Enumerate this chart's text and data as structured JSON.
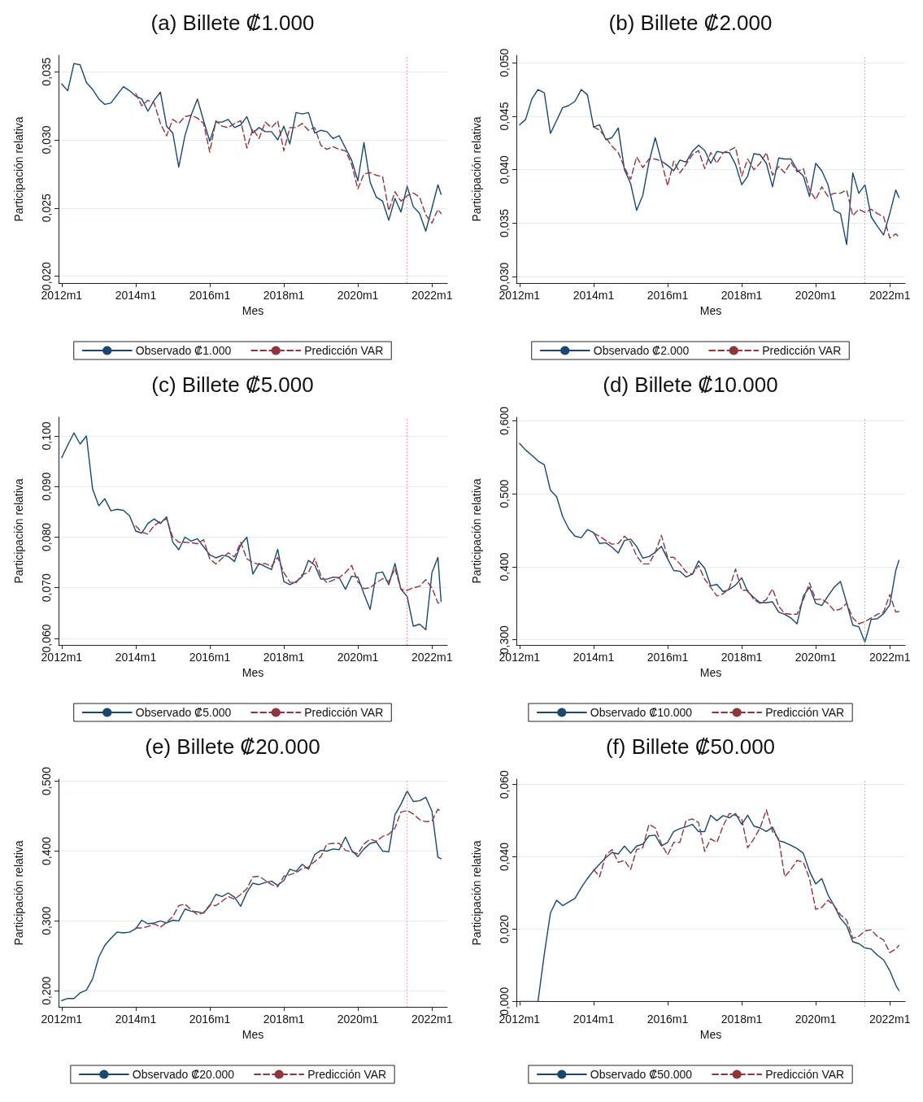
{
  "chart_data": [
    {
      "type": "line",
      "title": "(a) Billete ₡1.000",
      "xlabel": "Mes",
      "ylabel": "Participación relativa",
      "legend": "bottom",
      "grid": "y",
      "xlim": [
        "2011-12",
        "2022-06"
      ],
      "xticks": [
        {
          "value": "2012-01",
          "label": "2012m1"
        },
        {
          "value": "2014-01",
          "label": "2014m1"
        },
        {
          "value": "2016-01",
          "label": "2016m1"
        },
        {
          "value": "2018-01",
          "label": "2018m1"
        },
        {
          "value": "2020-01",
          "label": "2020m1"
        },
        {
          "value": "2022-01",
          "label": "2022m1"
        }
      ],
      "ylim": [
        0.0195,
        0.0362
      ],
      "yticks": [
        {
          "value": 0.02,
          "label": "0,020"
        },
        {
          "value": 0.025,
          "label": "0,025"
        },
        {
          "value": 0.03,
          "label": "0,030"
        },
        {
          "value": 0.035,
          "label": "0,035"
        }
      ],
      "ref_lines": [
        {
          "axis": "x",
          "value": "2021-05",
          "color": "#e8899a",
          "line_style": "dotted"
        }
      ],
      "x": [
        "2012-01",
        "2012-03",
        "2012-05",
        "2012-07",
        "2012-09",
        "2012-11",
        "2013-01",
        "2013-03",
        "2013-05",
        "2013-07",
        "2013-09",
        "2013-11",
        "2014-01",
        "2014-03",
        "2014-05",
        "2014-07",
        "2014-09",
        "2014-11",
        "2015-01",
        "2015-03",
        "2015-05",
        "2015-07",
        "2015-09",
        "2015-11",
        "2016-01",
        "2016-03",
        "2016-05",
        "2016-07",
        "2016-09",
        "2016-11",
        "2017-01",
        "2017-03",
        "2017-05",
        "2017-07",
        "2017-09",
        "2017-11",
        "2018-01",
        "2018-03",
        "2018-05",
        "2018-07",
        "2018-09",
        "2018-11",
        "2019-01",
        "2019-03",
        "2019-05",
        "2019-07",
        "2019-09",
        "2019-11",
        "2020-01",
        "2020-03",
        "2020-05",
        "2020-07",
        "2020-09",
        "2020-11",
        "2021-01",
        "2021-03",
        "2021-05",
        "2021-07",
        "2021-09",
        "2021-11",
        "2022-01",
        "2022-03",
        "2022-04"
      ],
      "series": [
        {
          "name": "Observado ₡1.000",
          "color": "#1a476f",
          "line_style": "solid",
          "values": [
            0.0341,
            0.0336,
            0.0356,
            0.0355,
            0.0342,
            0.0337,
            0.033,
            0.0326,
            0.0327,
            0.0333,
            0.0339,
            0.0336,
            0.0332,
            0.033,
            0.0321,
            0.0329,
            0.0335,
            0.031,
            0.0305,
            0.028,
            0.0303,
            0.0318,
            0.033,
            0.0314,
            0.0299,
            0.0313,
            0.0313,
            0.0315,
            0.0309,
            0.0311,
            0.0317,
            0.0305,
            0.0309,
            0.0306,
            0.0306,
            0.03,
            0.031,
            0.0297,
            0.032,
            0.0319,
            0.032,
            0.0305,
            0.0307,
            0.0306,
            0.0301,
            0.0303,
            0.0294,
            0.0285,
            0.027,
            0.0298,
            0.0269,
            0.0258,
            0.0255,
            0.0241,
            0.0257,
            0.0247,
            0.0266,
            0.0251,
            0.0246,
            0.0233,
            0.025,
            0.0267,
            0.026
          ]
        },
        {
          "name": "Predicción VAR",
          "color": "#90353b",
          "line_style": "dashed",
          "values": [
            null,
            null,
            null,
            null,
            null,
            null,
            null,
            null,
            null,
            null,
            null,
            null,
            0.0334,
            0.0325,
            0.0329,
            0.0327,
            0.0312,
            0.0303,
            0.0315,
            0.0312,
            0.0317,
            0.0318,
            0.0316,
            0.0312,
            0.0291,
            0.0314,
            0.031,
            0.0309,
            0.0312,
            0.0314,
            0.0294,
            0.0308,
            0.0301,
            0.0313,
            0.0309,
            0.0314,
            0.0292,
            0.0309,
            0.0309,
            0.0312,
            0.0307,
            0.0309,
            0.0296,
            0.0293,
            0.0295,
            0.0293,
            0.0292,
            0.0282,
            0.0264,
            0.0275,
            0.0276,
            0.0274,
            0.0273,
            0.0248,
            0.0262,
            0.0255,
            0.0259,
            0.0261,
            0.0258,
            0.0245,
            0.0239,
            0.0249,
            0.0246
          ]
        }
      ]
    },
    {
      "type": "line",
      "title": "(b) Billete ₡2.000",
      "xlabel": "Mes",
      "ylabel": "Participación relativa",
      "legend": "bottom",
      "grid": "y",
      "xlim": [
        "2011-12",
        "2022-06"
      ],
      "xticks": [
        {
          "value": "2012-01",
          "label": "2012m1"
        },
        {
          "value": "2014-01",
          "label": "2014m1"
        },
        {
          "value": "2016-01",
          "label": "2016m1"
        },
        {
          "value": "2018-01",
          "label": "2018m1"
        },
        {
          "value": "2020-01",
          "label": "2020m1"
        },
        {
          "value": "2022-01",
          "label": "2022m1"
        }
      ],
      "ylim": [
        0.0294,
        0.0507
      ],
      "yticks": [
        {
          "value": 0.03,
          "label": "0,030"
        },
        {
          "value": 0.035,
          "label": "0,035"
        },
        {
          "value": 0.04,
          "label": "0,040"
        },
        {
          "value": 0.045,
          "label": "0,045"
        },
        {
          "value": 0.05,
          "label": "0,050"
        }
      ],
      "ref_lines": [
        {
          "axis": "x",
          "value": "2021-05",
          "color": "#e8899a",
          "line_style": "dotted"
        }
      ],
      "x": [
        "2012-01",
        "2012-03",
        "2012-05",
        "2012-07",
        "2012-09",
        "2012-11",
        "2013-01",
        "2013-03",
        "2013-05",
        "2013-07",
        "2013-09",
        "2013-11",
        "2014-01",
        "2014-03",
        "2014-05",
        "2014-07",
        "2014-09",
        "2014-11",
        "2015-01",
        "2015-03",
        "2015-05",
        "2015-07",
        "2015-09",
        "2015-11",
        "2016-01",
        "2016-03",
        "2016-05",
        "2016-07",
        "2016-09",
        "2016-11",
        "2017-01",
        "2017-03",
        "2017-05",
        "2017-07",
        "2017-09",
        "2017-11",
        "2018-01",
        "2018-03",
        "2018-05",
        "2018-07",
        "2018-09",
        "2018-11",
        "2019-01",
        "2019-03",
        "2019-05",
        "2019-07",
        "2019-09",
        "2019-11",
        "2020-01",
        "2020-03",
        "2020-05",
        "2020-07",
        "2020-09",
        "2020-11",
        "2021-01",
        "2021-03",
        "2021-05",
        "2021-07",
        "2021-09",
        "2021-11",
        "2022-01",
        "2022-03",
        "2022-04"
      ],
      "series": [
        {
          "name": "Observado ₡2.000",
          "color": "#1a476f",
          "line_style": "solid",
          "values": [
            0.0442,
            0.0447,
            0.0466,
            0.0475,
            0.0472,
            0.0434,
            0.0446,
            0.0458,
            0.046,
            0.0464,
            0.0475,
            0.047,
            0.044,
            0.0442,
            0.0428,
            0.043,
            0.0439,
            0.04,
            0.0387,
            0.0362,
            0.0376,
            0.0407,
            0.043,
            0.0408,
            0.0404,
            0.0399,
            0.0409,
            0.0407,
            0.0417,
            0.0423,
            0.0418,
            0.0406,
            0.0417,
            0.0416,
            0.0416,
            0.0405,
            0.0386,
            0.0394,
            0.0415,
            0.0414,
            0.0406,
            0.0384,
            0.0411,
            0.041,
            0.041,
            0.04,
            0.0394,
            0.0375,
            0.0406,
            0.0399,
            0.0386,
            0.0362,
            0.0359,
            0.033,
            0.0397,
            0.0378,
            0.0386,
            0.0356,
            0.0347,
            0.0339,
            0.0359,
            0.0381,
            0.0374
          ]
        },
        {
          "name": "Predicción VAR",
          "color": "#90353b",
          "line_style": "dashed",
          "values": [
            null,
            null,
            null,
            null,
            null,
            null,
            null,
            null,
            null,
            null,
            null,
            null,
            0.044,
            0.0437,
            0.043,
            0.0422,
            0.0416,
            0.0402,
            0.0391,
            0.0412,
            0.0402,
            0.041,
            0.041,
            0.0408,
            0.0385,
            0.0408,
            0.0397,
            0.0405,
            0.0414,
            0.0418,
            0.0401,
            0.0416,
            0.0406,
            0.0416,
            0.0418,
            0.0421,
            0.0394,
            0.041,
            0.04,
            0.0406,
            0.0416,
            0.0395,
            0.0403,
            0.0397,
            0.0407,
            0.0398,
            0.0401,
            0.0381,
            0.0372,
            0.0384,
            0.0375,
            0.0378,
            0.0378,
            0.0381,
            0.0357,
            0.0363,
            0.036,
            0.0363,
            0.0359,
            0.0356,
            0.0336,
            0.034,
            0.0337
          ]
        }
      ]
    },
    {
      "type": "line",
      "title": "(c) Billete ₡5.000",
      "xlabel": "Mes",
      "ylabel": "Participación relativa",
      "legend": "bottom",
      "grid": "y",
      "xlim": [
        "2011-12",
        "2022-06"
      ],
      "xticks": [
        {
          "value": "2012-01",
          "label": "2012m1"
        },
        {
          "value": "2014-01",
          "label": "2014m1"
        },
        {
          "value": "2016-01",
          "label": "2016m1"
        },
        {
          "value": "2018-01",
          "label": "2018m1"
        },
        {
          "value": "2020-01",
          "label": "2020m1"
        },
        {
          "value": "2022-01",
          "label": "2022m1"
        }
      ],
      "ylim": [
        0.0587,
        0.1037
      ],
      "yticks": [
        {
          "value": 0.06,
          "label": "0,060"
        },
        {
          "value": 0.07,
          "label": "0,070"
        },
        {
          "value": 0.08,
          "label": "0,080"
        },
        {
          "value": 0.09,
          "label": "0,090"
        },
        {
          "value": 0.1,
          "label": "0,100"
        }
      ],
      "ref_lines": [
        {
          "axis": "x",
          "value": "2021-05",
          "color": "#e8899a",
          "line_style": "dotted"
        }
      ],
      "x": [
        "2012-01",
        "2012-03",
        "2012-05",
        "2012-07",
        "2012-09",
        "2012-11",
        "2013-01",
        "2013-03",
        "2013-05",
        "2013-07",
        "2013-09",
        "2013-11",
        "2014-01",
        "2014-03",
        "2014-05",
        "2014-07",
        "2014-09",
        "2014-11",
        "2015-01",
        "2015-03",
        "2015-05",
        "2015-07",
        "2015-09",
        "2015-11",
        "2016-01",
        "2016-03",
        "2016-05",
        "2016-07",
        "2016-09",
        "2016-11",
        "2017-01",
        "2017-03",
        "2017-05",
        "2017-07",
        "2017-09",
        "2017-11",
        "2018-01",
        "2018-03",
        "2018-05",
        "2018-07",
        "2018-09",
        "2018-11",
        "2019-01",
        "2019-03",
        "2019-05",
        "2019-07",
        "2019-09",
        "2019-11",
        "2020-01",
        "2020-03",
        "2020-05",
        "2020-07",
        "2020-09",
        "2020-11",
        "2021-01",
        "2021-03",
        "2021-05",
        "2021-07",
        "2021-09",
        "2021-11",
        "2022-01",
        "2022-03",
        "2022-04"
      ],
      "series": [
        {
          "name": "Observado ₡5.000",
          "color": "#1a476f",
          "line_style": "solid",
          "values": [
            0.0957,
            0.0982,
            0.1006,
            0.0984,
            0.1,
            0.0895,
            0.0862,
            0.0876,
            0.0852,
            0.0855,
            0.0853,
            0.0842,
            0.0812,
            0.0808,
            0.0827,
            0.0836,
            0.0827,
            0.084,
            0.079,
            0.0775,
            0.08,
            0.0792,
            0.0797,
            0.0781,
            0.0765,
            0.0759,
            0.0764,
            0.0762,
            0.0752,
            0.0785,
            0.08,
            0.0727,
            0.0748,
            0.0742,
            0.0736,
            0.0776,
            0.0712,
            0.0706,
            0.0712,
            0.0722,
            0.0754,
            0.0745,
            0.0717,
            0.0717,
            0.0721,
            0.072,
            0.0697,
            0.0723,
            0.0721,
            0.0688,
            0.0657,
            0.0729,
            0.0731,
            0.0706,
            0.0748,
            0.0697,
            0.0683,
            0.0624,
            0.0628,
            0.0617,
            0.073,
            0.076,
            0.0673
          ]
        },
        {
          "name": "Predicción VAR",
          "color": "#90353b",
          "line_style": "dashed",
          "values": [
            null,
            null,
            null,
            null,
            null,
            null,
            null,
            null,
            null,
            null,
            null,
            null,
            0.0822,
            0.081,
            0.0806,
            0.0823,
            0.0831,
            0.0836,
            0.08,
            0.079,
            0.079,
            0.0789,
            0.0787,
            0.0795,
            0.0757,
            0.0747,
            0.0758,
            0.0769,
            0.0761,
            0.079,
            0.0757,
            0.075,
            0.0746,
            0.0748,
            0.0742,
            0.076,
            0.073,
            0.0711,
            0.071,
            0.0726,
            0.073,
            0.0758,
            0.0724,
            0.071,
            0.0715,
            0.072,
            0.073,
            0.0744,
            0.0712,
            0.0698,
            0.07,
            0.071,
            0.0718,
            0.0712,
            0.0738,
            0.0697,
            0.0695,
            0.07,
            0.0703,
            0.0716,
            0.07,
            0.067,
            0.067
          ]
        }
      ]
    },
    {
      "type": "line",
      "title": "(d) Billete ₡10.000",
      "xlabel": "Mes",
      "ylabel": "Participación relativa",
      "legend": "bottom",
      "grid": "y",
      "xlim": [
        "2011-12",
        "2022-06"
      ],
      "xticks": [
        {
          "value": "2012-01",
          "label": "2012m1"
        },
        {
          "value": "2014-01",
          "label": "2014m1"
        },
        {
          "value": "2016-01",
          "label": "2016m1"
        },
        {
          "value": "2018-01",
          "label": "2018m1"
        },
        {
          "value": "2020-01",
          "label": "2020m1"
        },
        {
          "value": "2022-01",
          "label": "2022m1"
        }
      ],
      "ylim": [
        0.293,
        0.605
      ],
      "yticks": [
        {
          "value": 0.3,
          "label": "0,300"
        },
        {
          "value": 0.4,
          "label": "0,400"
        },
        {
          "value": 0.5,
          "label": "0,500"
        },
        {
          "value": 0.6,
          "label": "0,600"
        }
      ],
      "ref_lines": [
        {
          "axis": "x",
          "value": "2021-05",
          "color": "#e8899a",
          "line_style": "dotted"
        }
      ],
      "x": [
        "2012-01",
        "2012-03",
        "2012-05",
        "2012-07",
        "2012-09",
        "2012-11",
        "2013-01",
        "2013-03",
        "2013-05",
        "2013-07",
        "2013-09",
        "2013-11",
        "2014-01",
        "2014-03",
        "2014-05",
        "2014-07",
        "2014-09",
        "2014-11",
        "2015-01",
        "2015-03",
        "2015-05",
        "2015-07",
        "2015-09",
        "2015-11",
        "2016-01",
        "2016-03",
        "2016-05",
        "2016-07",
        "2016-09",
        "2016-11",
        "2017-01",
        "2017-03",
        "2017-05",
        "2017-07",
        "2017-09",
        "2017-11",
        "2018-01",
        "2018-03",
        "2018-05",
        "2018-07",
        "2018-09",
        "2018-11",
        "2019-01",
        "2019-03",
        "2019-05",
        "2019-07",
        "2019-09",
        "2019-11",
        "2020-01",
        "2020-03",
        "2020-05",
        "2020-07",
        "2020-09",
        "2020-11",
        "2021-01",
        "2021-03",
        "2021-05",
        "2021-07",
        "2021-09",
        "2021-11",
        "2022-01",
        "2022-03",
        "2022-04"
      ],
      "series": [
        {
          "name": "Observado ₡10.000",
          "color": "#1a476f",
          "line_style": "solid",
          "values": [
            0.569,
            0.56,
            0.553,
            0.545,
            0.54,
            0.505,
            0.496,
            0.469,
            0.452,
            0.442,
            0.44,
            0.451,
            0.447,
            0.432,
            0.433,
            0.427,
            0.419,
            0.436,
            0.438,
            0.428,
            0.412,
            0.414,
            0.42,
            0.428,
            0.411,
            0.395,
            0.394,
            0.386,
            0.39,
            0.408,
            0.398,
            0.374,
            0.376,
            0.366,
            0.369,
            0.375,
            0.385,
            0.366,
            0.358,
            0.351,
            0.351,
            0.352,
            0.338,
            0.335,
            0.33,
            0.322,
            0.36,
            0.372,
            0.35,
            0.347,
            0.36,
            0.372,
            0.38,
            0.351,
            0.32,
            0.318,
            0.297,
            0.328,
            0.329,
            0.336,
            0.348,
            0.395,
            0.409
          ]
        },
        {
          "name": "Predicción VAR",
          "color": "#90353b",
          "line_style": "dashed",
          "values": [
            null,
            null,
            null,
            null,
            null,
            null,
            null,
            null,
            null,
            null,
            null,
            null,
            0.446,
            0.442,
            0.436,
            0.431,
            0.432,
            0.442,
            0.434,
            0.415,
            0.404,
            0.404,
            0.42,
            0.443,
            0.413,
            0.413,
            0.404,
            0.393,
            0.39,
            0.402,
            0.383,
            0.372,
            0.36,
            0.363,
            0.371,
            0.397,
            0.368,
            0.368,
            0.355,
            0.35,
            0.355,
            0.37,
            0.346,
            0.336,
            0.335,
            0.335,
            0.355,
            0.378,
            0.355,
            0.356,
            0.35,
            0.34,
            0.342,
            0.35,
            0.33,
            0.322,
            0.325,
            0.33,
            0.335,
            0.338,
            0.362,
            0.338,
            0.339
          ]
        }
      ]
    },
    {
      "type": "line",
      "title": "(e) Billete ₡20.000",
      "xlabel": "Mes",
      "ylabel": "Participación relativa",
      "legend": "bottom",
      "grid": "y",
      "xlim": [
        "2011-12",
        "2022-06"
      ],
      "xticks": [
        {
          "value": "2012-01",
          "label": "2012m1"
        },
        {
          "value": "2014-01",
          "label": "2014m1"
        },
        {
          "value": "2016-01",
          "label": "2016m1"
        },
        {
          "value": "2018-01",
          "label": "2018m1"
        },
        {
          "value": "2020-01",
          "label": "2020m1"
        },
        {
          "value": "2022-01",
          "label": "2022m1"
        }
      ],
      "ylim": [
        0.177,
        0.503
      ],
      "yticks": [
        {
          "value": 0.2,
          "label": "0,200"
        },
        {
          "value": 0.3,
          "label": "0,300"
        },
        {
          "value": 0.4,
          "label": "0,400"
        },
        {
          "value": 0.5,
          "label": "0,500"
        }
      ],
      "ref_lines": [
        {
          "axis": "x",
          "value": "2021-05",
          "color": "#e8899a",
          "line_style": "dotted"
        }
      ],
      "x": [
        "2012-01",
        "2012-03",
        "2012-05",
        "2012-07",
        "2012-09",
        "2012-11",
        "2013-01",
        "2013-03",
        "2013-05",
        "2013-07",
        "2013-09",
        "2013-11",
        "2014-01",
        "2014-03",
        "2014-05",
        "2014-07",
        "2014-09",
        "2014-11",
        "2015-01",
        "2015-03",
        "2015-05",
        "2015-07",
        "2015-09",
        "2015-11",
        "2016-01",
        "2016-03",
        "2016-05",
        "2016-07",
        "2016-09",
        "2016-11",
        "2017-01",
        "2017-03",
        "2017-05",
        "2017-07",
        "2017-09",
        "2017-11",
        "2018-01",
        "2018-03",
        "2018-05",
        "2018-07",
        "2018-09",
        "2018-11",
        "2019-01",
        "2019-03",
        "2019-05",
        "2019-07",
        "2019-09",
        "2019-11",
        "2020-01",
        "2020-03",
        "2020-05",
        "2020-07",
        "2020-09",
        "2020-11",
        "2021-01",
        "2021-03",
        "2021-05",
        "2021-07",
        "2021-09",
        "2021-11",
        "2022-01",
        "2022-03",
        "2022-04"
      ],
      "series": [
        {
          "name": "Observado ₡20.000",
          "color": "#1a476f",
          "line_style": "solid",
          "values": [
            0.186,
            0.189,
            0.189,
            0.197,
            0.201,
            0.217,
            0.248,
            0.265,
            0.275,
            0.284,
            0.283,
            0.284,
            0.289,
            0.301,
            0.296,
            0.297,
            0.3,
            0.297,
            0.301,
            0.3,
            0.317,
            0.314,
            0.313,
            0.311,
            0.322,
            0.338,
            0.335,
            0.34,
            0.334,
            0.321,
            0.341,
            0.354,
            0.352,
            0.355,
            0.357,
            0.351,
            0.358,
            0.374,
            0.371,
            0.381,
            0.374,
            0.395,
            0.401,
            0.4,
            0.403,
            0.402,
            0.42,
            0.401,
            0.392,
            0.403,
            0.411,
            0.413,
            0.4,
            0.399,
            0.452,
            0.467,
            0.486,
            0.471,
            0.472,
            0.477,
            0.457,
            0.391,
            0.389
          ]
        },
        {
          "name": "Predicción VAR",
          "color": "#90353b",
          "line_style": "dashed",
          "values": [
            null,
            null,
            null,
            null,
            null,
            null,
            null,
            null,
            null,
            null,
            null,
            null,
            0.29,
            0.29,
            0.292,
            0.296,
            0.291,
            0.298,
            0.306,
            0.322,
            0.324,
            0.316,
            0.309,
            0.312,
            0.323,
            0.322,
            0.328,
            0.335,
            0.331,
            0.338,
            0.346,
            0.363,
            0.364,
            0.358,
            0.352,
            0.349,
            0.364,
            0.366,
            0.369,
            0.375,
            0.377,
            0.385,
            0.392,
            0.41,
            0.411,
            0.411,
            0.401,
            0.399,
            0.396,
            0.41,
            0.417,
            0.414,
            0.421,
            0.424,
            0.433,
            0.456,
            0.458,
            0.453,
            0.445,
            0.442,
            0.443,
            0.46,
            0.456
          ]
        }
      ]
    },
    {
      "type": "line",
      "title": "(f) Billete ₡50.000",
      "xlabel": "Mes",
      "ylabel": "Participación relativa",
      "legend": "bottom",
      "grid": "y",
      "xlim": [
        "2011-12",
        "2022-06"
      ],
      "xticks": [
        {
          "value": "2012-01",
          "label": "2012m1"
        },
        {
          "value": "2014-01",
          "label": "2014m1"
        },
        {
          "value": "2016-01",
          "label": "2016m1"
        },
        {
          "value": "2018-01",
          "label": "2018m1"
        },
        {
          "value": "2020-01",
          "label": "2020m1"
        },
        {
          "value": "2022-01",
          "label": "2022m1"
        }
      ],
      "ylim": [
        -0.0015,
        0.0615
      ],
      "yticks": [
        {
          "value": 0,
          "label": "0,000"
        },
        {
          "value": 0.02,
          "label": "0,020"
        },
        {
          "value": 0.04,
          "label": "0,040"
        },
        {
          "value": 0.06,
          "label": "0,060"
        }
      ],
      "ref_lines": [
        {
          "axis": "x",
          "value": "2021-05",
          "color": "#e8899a",
          "line_style": "dotted"
        }
      ],
      "x": [
        "2012-01",
        "2012-03",
        "2012-05",
        "2012-07",
        "2012-09",
        "2012-11",
        "2013-01",
        "2013-03",
        "2013-05",
        "2013-07",
        "2013-09",
        "2013-11",
        "2014-01",
        "2014-03",
        "2014-05",
        "2014-07",
        "2014-09",
        "2014-11",
        "2015-01",
        "2015-03",
        "2015-05",
        "2015-07",
        "2015-09",
        "2015-11",
        "2016-01",
        "2016-03",
        "2016-05",
        "2016-07",
        "2016-09",
        "2016-11",
        "2017-01",
        "2017-03",
        "2017-05",
        "2017-07",
        "2017-09",
        "2017-11",
        "2018-01",
        "2018-03",
        "2018-05",
        "2018-07",
        "2018-09",
        "2018-11",
        "2019-01",
        "2019-03",
        "2019-05",
        "2019-07",
        "2019-09",
        "2019-11",
        "2020-01",
        "2020-03",
        "2020-05",
        "2020-07",
        "2020-09",
        "2020-11",
        "2021-01",
        "2021-03",
        "2021-05",
        "2021-07",
        "2021-09",
        "2021-11",
        "2022-01",
        "2022-03",
        "2022-04"
      ],
      "series": [
        {
          "name": "Observado ₡50.000",
          "color": "#1a476f",
          "line_style": "solid",
          "values": [
            0,
            0,
            0,
            0,
            0.013,
            0.0245,
            0.028,
            0.0265,
            0.0275,
            0.0285,
            0.0315,
            0.034,
            0.0362,
            0.038,
            0.0398,
            0.0412,
            0.0408,
            0.043,
            0.041,
            0.043,
            0.0435,
            0.0458,
            0.046,
            0.043,
            0.044,
            0.047,
            0.0478,
            0.0483,
            0.049,
            0.047,
            0.047,
            0.0515,
            0.05,
            0.0514,
            0.0508,
            0.052,
            0.049,
            0.0515,
            0.0485,
            0.048,
            0.047,
            0.0482,
            0.0445,
            0.044,
            0.0432,
            0.0423,
            0.041,
            0.036,
            0.0325,
            0.034,
            0.0295,
            0.0265,
            0.023,
            0.021,
            0.0165,
            0.016,
            0.0148,
            0.0145,
            0.0128,
            0.0115,
            0.0085,
            0.0045,
            0.003
          ]
        },
        {
          "name": "Predicción VAR",
          "color": "#90353b",
          "line_style": "dashed",
          "values": [
            null,
            null,
            null,
            null,
            null,
            null,
            null,
            null,
            null,
            null,
            null,
            null,
            0.0365,
            0.0345,
            0.0405,
            0.042,
            0.0385,
            0.039,
            0.0365,
            0.042,
            0.0425,
            0.049,
            0.048,
            0.0435,
            0.0405,
            0.044,
            0.044,
            0.05,
            0.0505,
            0.0495,
            0.0415,
            0.045,
            0.044,
            0.0485,
            0.052,
            0.0515,
            0.0505,
            0.0425,
            0.045,
            0.048,
            0.053,
            0.047,
            0.045,
            0.0345,
            0.0365,
            0.039,
            0.0385,
            0.034,
            0.0255,
            0.026,
            0.028,
            0.0265,
            0.024,
            0.0225,
            0.0175,
            0.018,
            0.0195,
            0.0198,
            0.018,
            0.017,
            0.0135,
            0.0145,
            0.0155
          ]
        }
      ]
    }
  ]
}
